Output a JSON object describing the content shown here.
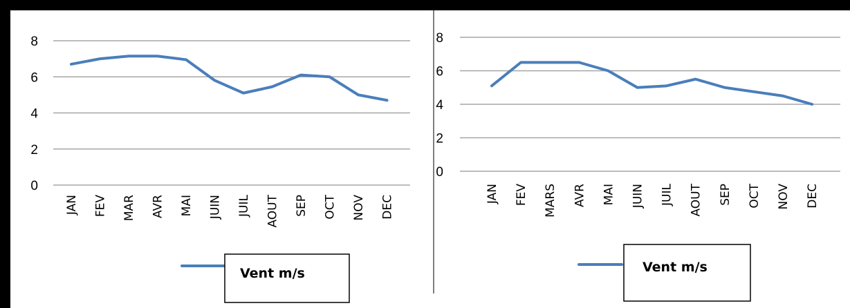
{
  "chart_data": [
    {
      "type": "line",
      "categories": [
        "JAN",
        "FEV",
        "MAR",
        "AVR",
        "MAI",
        "JUIN",
        "JUIL",
        "AOUT",
        "SEP",
        "OCT",
        "NOV",
        "DEC"
      ],
      "series": [
        {
          "name": "Vent m/s",
          "values": [
            6.7,
            7.0,
            7.15,
            7.15,
            6.95,
            5.8,
            5.1,
            5.45,
            6.1,
            6.0,
            5.0,
            4.7
          ]
        }
      ],
      "ylim": [
        0,
        8
      ],
      "yticks": [
        0,
        2,
        4,
        6,
        8
      ],
      "grid": true,
      "legend": "bottom",
      "color": "#4a7ebb"
    },
    {
      "type": "line",
      "categories": [
        "JAN",
        "FEV",
        "MARS",
        "AVR",
        "MAI",
        "JUIN",
        "JUIL",
        "AOUT",
        "SEP",
        "OCT",
        "NOV",
        "DEC"
      ],
      "series": [
        {
          "name": "Vent m/s",
          "values": [
            5.1,
            6.5,
            6.5,
            6.5,
            6.0,
            5.0,
            5.1,
            5.5,
            5.0,
            4.75,
            4.5,
            4.0
          ]
        }
      ],
      "ylim": [
        0,
        8
      ],
      "yticks": [
        0,
        2,
        4,
        6,
        8
      ],
      "grid": true,
      "legend": "bottom",
      "color": "#4a7ebb"
    }
  ]
}
